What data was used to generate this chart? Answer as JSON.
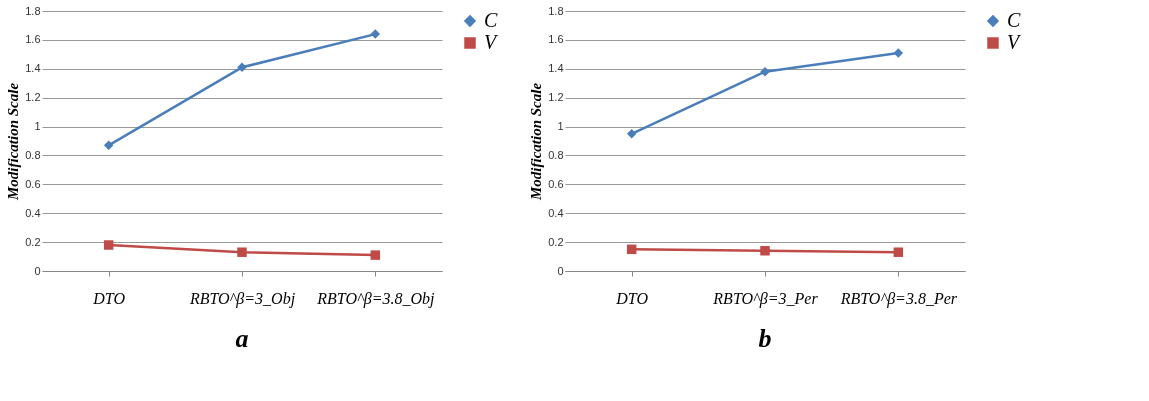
{
  "chart_data": [
    {
      "type": "line",
      "title": "a",
      "ylabel": "Modification Scale",
      "categories": [
        "DTO",
        "RBTO^β=3_Obj",
        "RBTO^β=3.8_Obj"
      ],
      "series": [
        {
          "name": "C",
          "color": "#4a7ebb",
          "marker": "diamond",
          "values": [
            0.87,
            1.41,
            1.64
          ]
        },
        {
          "name": "V",
          "color": "#be4b48",
          "marker": "square",
          "values": [
            0.18,
            0.13,
            0.11
          ]
        }
      ],
      "ylim": [
        0,
        1.8
      ],
      "yticks": [
        0,
        0.2,
        0.4,
        0.6,
        0.8,
        1,
        1.2,
        1.4,
        1.6,
        1.8
      ],
      "grid": "y",
      "legend": "right"
    },
    {
      "type": "line",
      "title": "b",
      "ylabel": "Modification Scale",
      "categories": [
        "DTO",
        "RBTO^β=3_Per",
        "RBTO^β=3.8_Per"
      ],
      "series": [
        {
          "name": "C",
          "color": "#4a7ebb",
          "marker": "diamond",
          "values": [
            0.95,
            1.38,
            1.51
          ]
        },
        {
          "name": "V",
          "color": "#be4b48",
          "marker": "square",
          "values": [
            0.15,
            0.14,
            0.13
          ]
        }
      ],
      "ylim": [
        0,
        1.8
      ],
      "yticks": [
        0,
        0.2,
        0.4,
        0.6,
        0.8,
        1,
        1.2,
        1.4,
        1.6,
        1.8
      ],
      "grid": "y",
      "legend": "right"
    }
  ]
}
